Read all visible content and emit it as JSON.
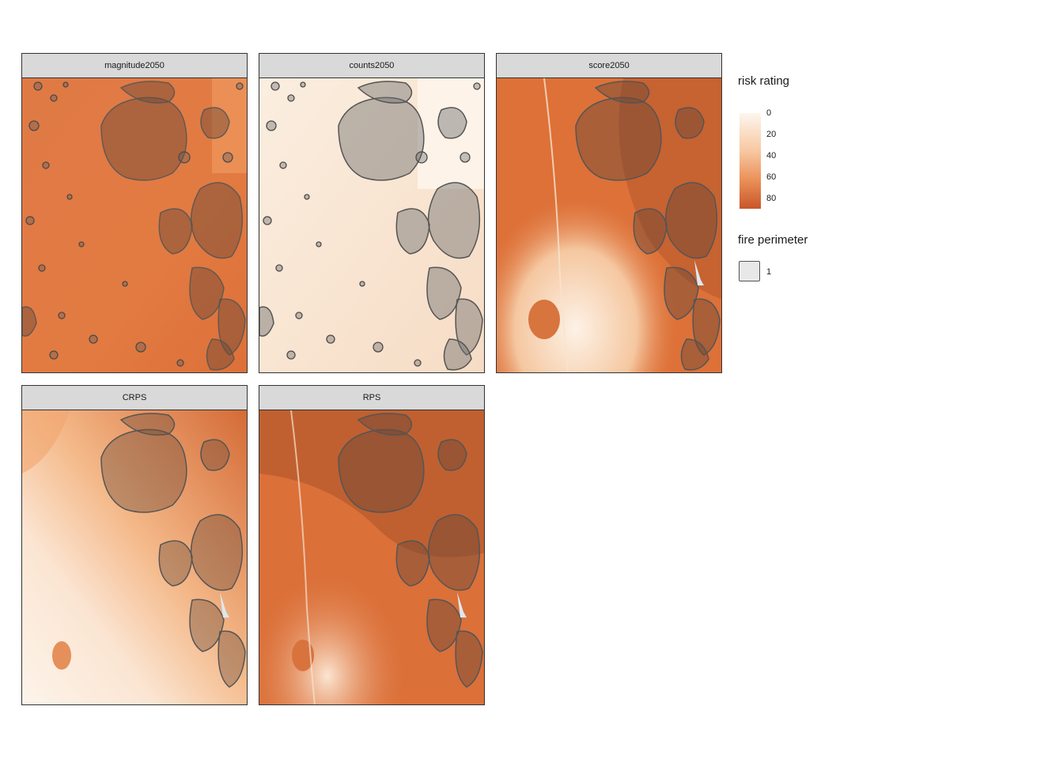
{
  "facets": [
    {
      "id": "magnitude2050",
      "title": "magnitude2050"
    },
    {
      "id": "counts2050",
      "title": "counts2050"
    },
    {
      "id": "score2050",
      "title": "score2050"
    },
    {
      "id": "crps",
      "title": "CRPS"
    },
    {
      "id": "rps",
      "title": "RPS"
    }
  ],
  "legend": {
    "risk_title": "risk rating",
    "ticks": [
      "0",
      "20",
      "40",
      "60",
      "80"
    ],
    "perimeter_title": "fire perimeter",
    "perimeter_label": "1"
  },
  "colors": {
    "low": "#fdf6ee",
    "high": "#c8562a",
    "perimeter_fill": "#5a5a5a",
    "perimeter_stroke": "#4a4a4a"
  }
}
